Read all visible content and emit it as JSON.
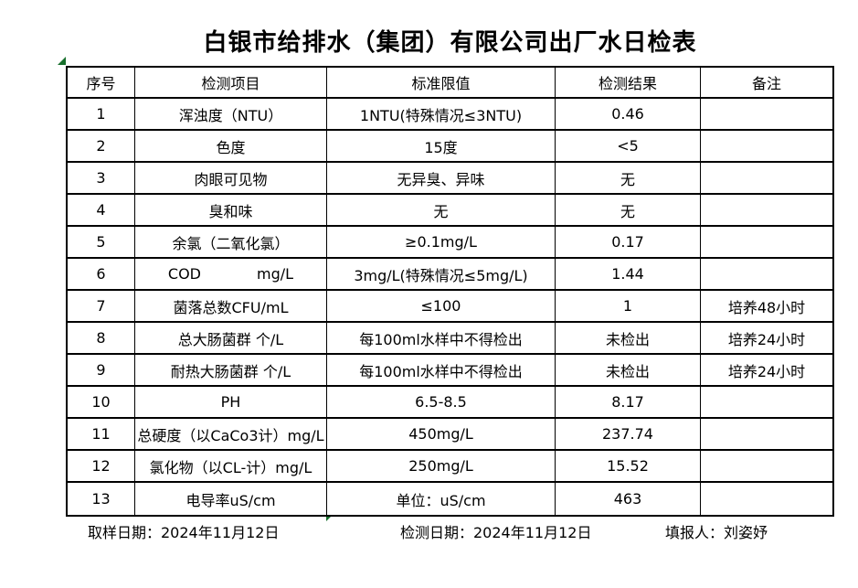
{
  "title": "白银市给排水（集团）有限公司出厂水日检表",
  "table": {
    "headers": [
      "序号",
      "检测项目",
      "标准限值",
      "检测结果",
      "备注"
    ],
    "rows": [
      [
        "1",
        "浑浊度（NTU）",
        "1NTU(特殊情况≤3NTU)",
        "0.46",
        ""
      ],
      [
        "2",
        "色度",
        "15度",
        "<5",
        ""
      ],
      [
        "3",
        "肉眼可见物",
        "无异臭、异味",
        "无",
        ""
      ],
      [
        "4",
        "臭和味",
        "无",
        "无",
        ""
      ],
      [
        "5",
        "余氯（二氧化氯）",
        "≥0.1mg/L",
        "0.17",
        ""
      ],
      [
        "6",
        "COD            mg/L",
        "3mg/L(特殊情况≤5mg/L)",
        "1.44",
        ""
      ],
      [
        "7",
        "菌落总数CFU/mL",
        "≤100",
        "1",
        "培养48小时"
      ],
      [
        "8",
        "总大肠菌群 个/L",
        "每100ml水样中不得检出",
        "未检出",
        "培养24小时"
      ],
      [
        "9",
        "耐热大肠菌群 个/L",
        "每100ml水样中不得检出",
        "未检出",
        "培养24小时"
      ],
      [
        "10",
        "PH",
        "6.5-8.5",
        "8.17",
        ""
      ],
      [
        "11",
        "总硬度（以CaCo3计）mg/L",
        "450mg/L",
        "237.74",
        ""
      ],
      [
        "12",
        "氯化物（以CL-计）mg/L",
        "250mg/L",
        "15.52",
        ""
      ],
      [
        "13",
        "电导率uS/cm",
        "单位：uS/cm",
        "463",
        ""
      ]
    ]
  },
  "footer": {
    "sampling_date": "取样日期：2024年11月12日",
    "test_date": "检测日期：2024年11月12日",
    "reporter": "填报人：刘姿妤"
  },
  "colors": {
    "marker_green": "#176f2c",
    "border": "#000000",
    "background": "#ffffff"
  }
}
